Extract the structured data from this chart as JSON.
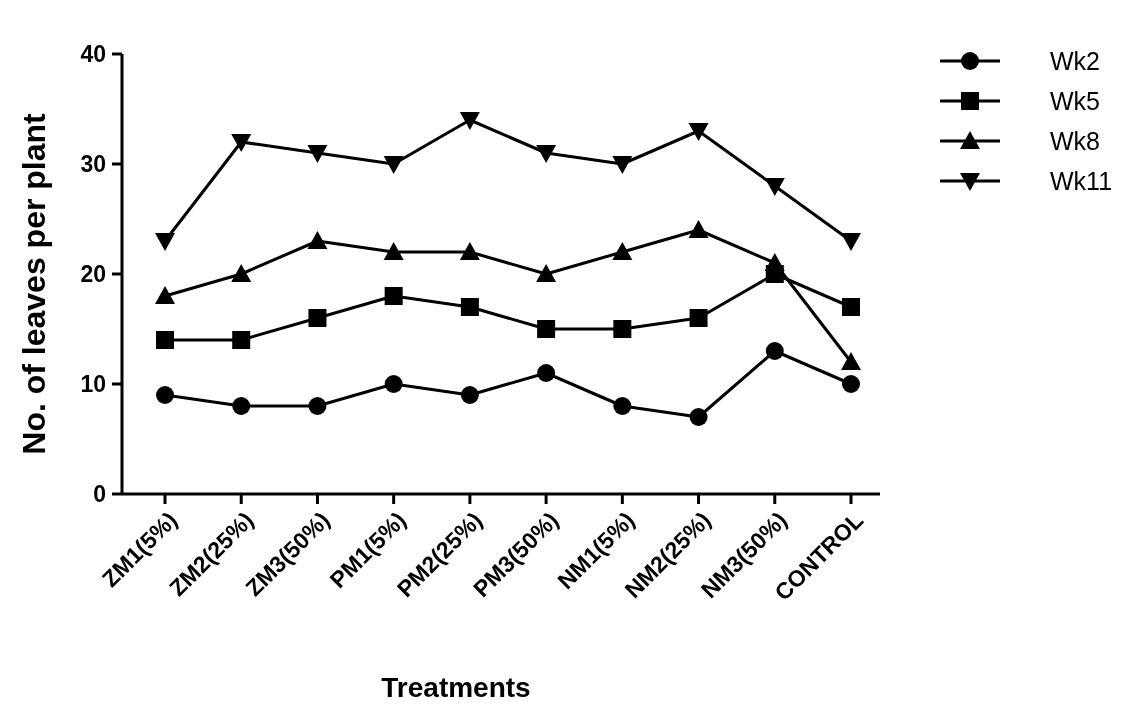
{
  "chart_data": {
    "type": "line",
    "xlabel": "Treatments",
    "ylabel": "No. of leaves per plant",
    "categories": [
      "ZM1(5%)",
      "ZM2(25%)",
      "ZM3(50%)",
      "PM1(5%)",
      "PM2(25%)",
      "PM3(50%)",
      "NM1(5%)",
      "NM2(25%)",
      "NM3(50%)",
      "CONTROL"
    ],
    "series": [
      {
        "name": "Wk2",
        "color": "#000000",
        "marker": "circle",
        "values": [
          9,
          8,
          8,
          10,
          9,
          11,
          8,
          7,
          13,
          10
        ]
      },
      {
        "name": "Wk5",
        "color": "#000000",
        "marker": "square",
        "values": [
          14,
          14,
          16,
          18,
          17,
          15,
          15,
          16,
          20,
          17
        ]
      },
      {
        "name": "Wk8",
        "color": "#000000",
        "marker": "triangle",
        "values": [
          18,
          20,
          23,
          22,
          22,
          20,
          22,
          24,
          21,
          12
        ]
      },
      {
        "name": "Wk11",
        "color": "#000000",
        "marker": "triangle-down",
        "values": [
          23,
          32,
          31,
          30,
          34,
          31,
          30,
          33,
          28,
          23
        ]
      }
    ],
    "ylim": [
      0,
      40
    ],
    "yticks": [
      0,
      10,
      20,
      30,
      40
    ],
    "grid": false,
    "legend": "right",
    "line_style": "solid"
  }
}
